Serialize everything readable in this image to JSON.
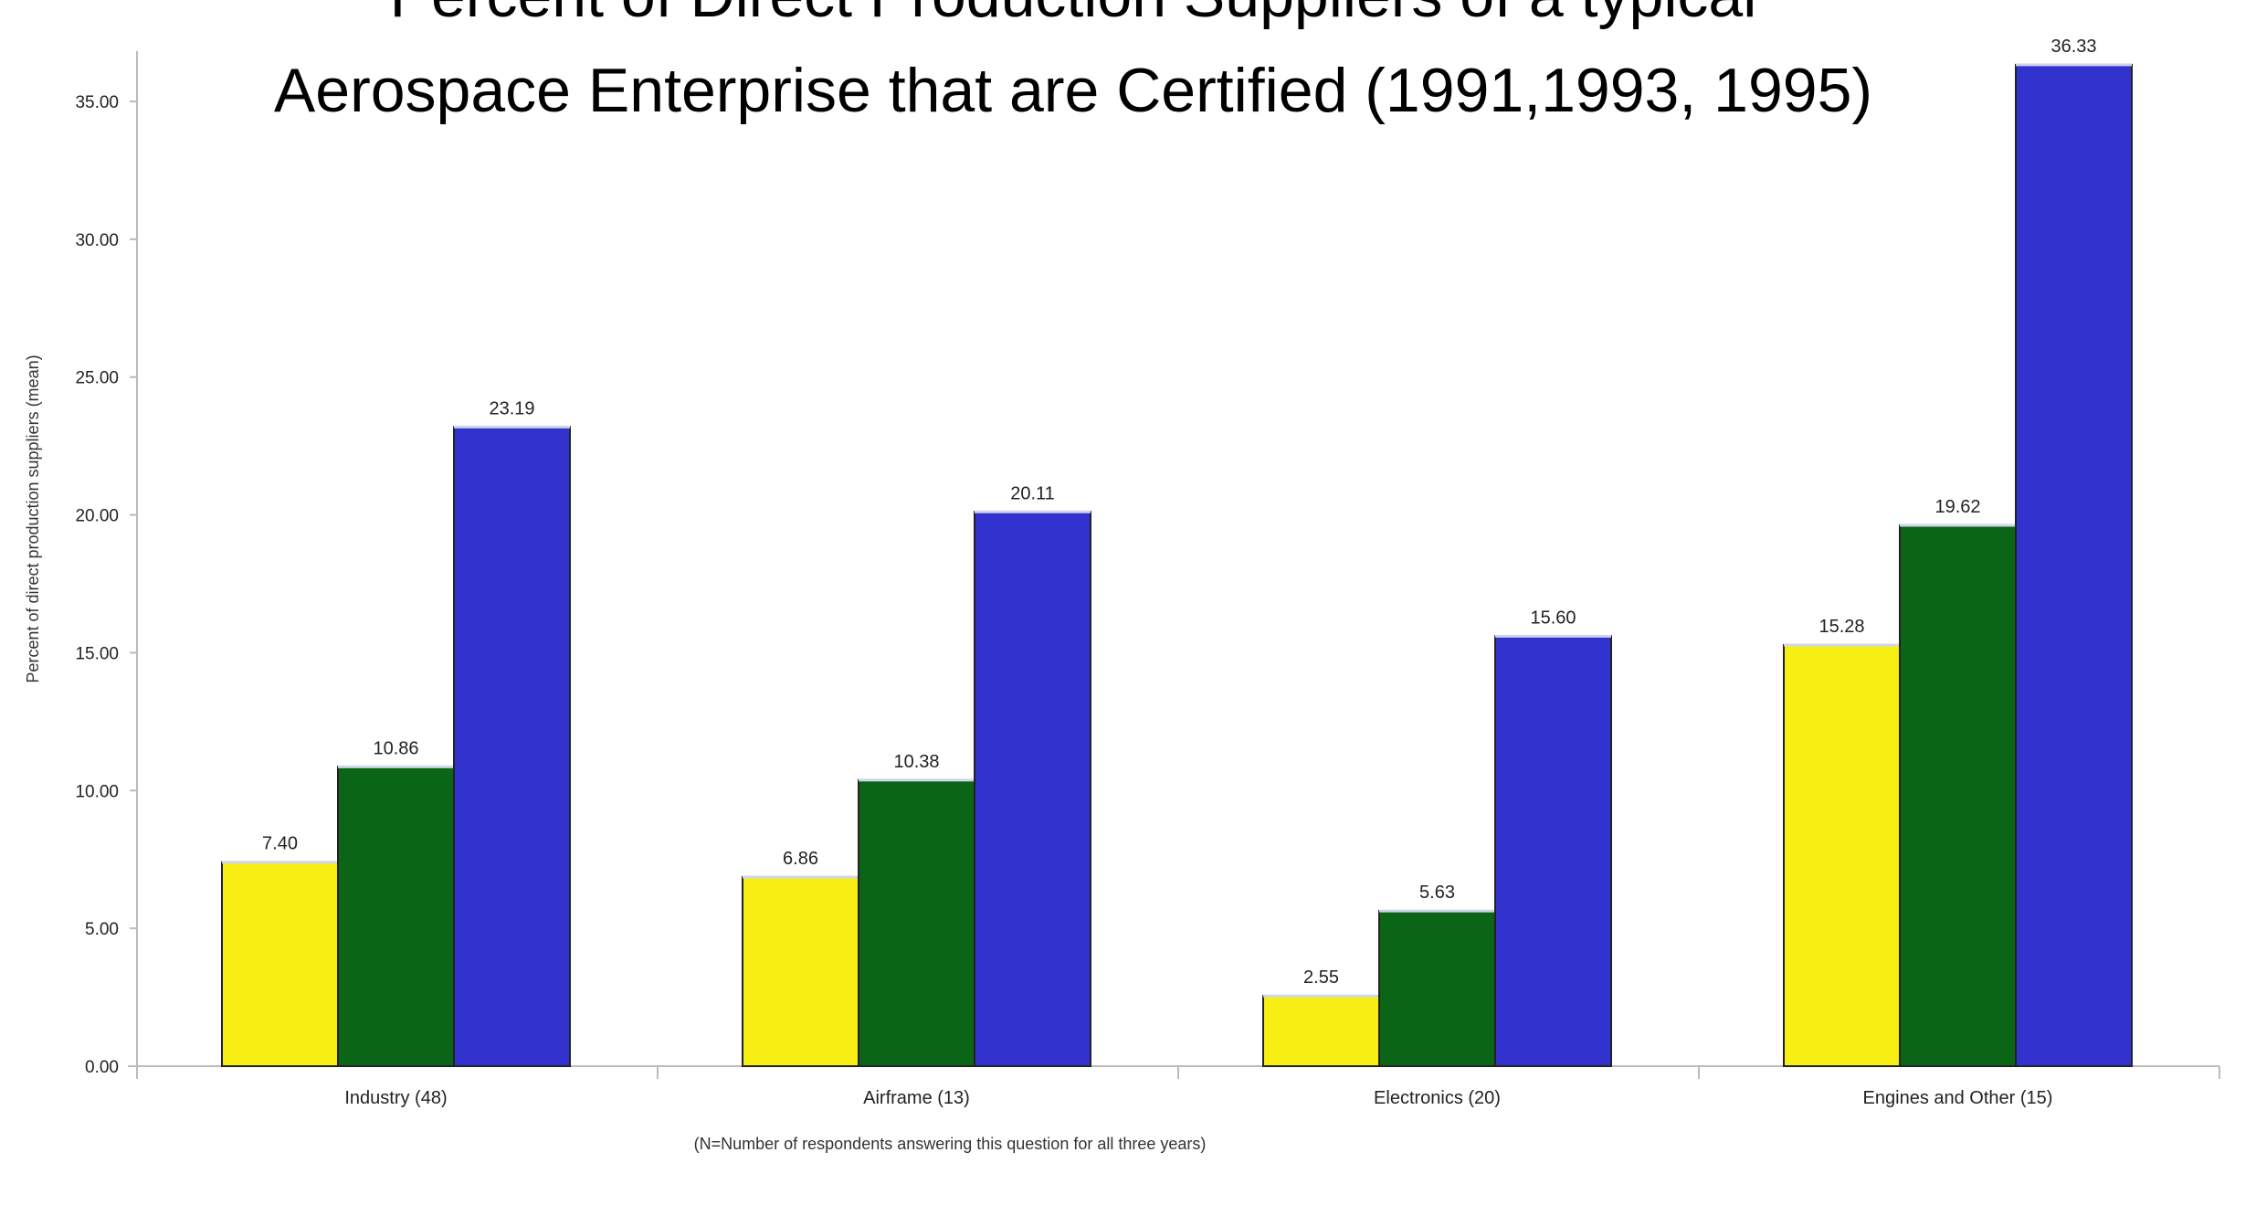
{
  "chart_data": {
    "type": "bar",
    "title_lines": [
      "Percent of Direct Production Suppliers of a typical",
      "Aerospace Enterprise that are Certified (1991,1993, 1995)"
    ],
    "xlabel": "(N=Number of respondents answering this question for all three years)",
    "ylabel": "Percent of direct production suppliers (mean)",
    "categories": [
      "Industry (48)",
      "Airframe (13)",
      "Electronics (20)",
      "Engines and Other (15)"
    ],
    "series": [
      {
        "values": [
          7.4,
          6.86,
          2.55,
          15.28
        ],
        "color": "#f7ef13"
      },
      {
        "values": [
          10.86,
          10.38,
          5.63,
          19.62
        ],
        "color": "#0b6516"
      },
      {
        "values": [
          23.19,
          20.11,
          15.6,
          36.33
        ],
        "color": "#3233cf"
      }
    ],
    "data_labels": [
      [
        "7.40",
        "6.86",
        "2.55",
        "15.28"
      ],
      [
        "10.86",
        "10.38",
        "5.63",
        "19.62"
      ],
      [
        "23.19",
        "20.11",
        "15.60",
        "36.33"
      ]
    ],
    "ylim": [
      0,
      36.5
    ],
    "yticks": [
      0,
      5,
      10,
      15,
      20,
      25,
      30,
      35
    ],
    "ytick_labels": [
      "0.00",
      "5.00",
      "10.00",
      "15.00",
      "20.00",
      "25.00",
      "30.00",
      "35.00"
    ],
    "grid": false,
    "legend": "none"
  }
}
